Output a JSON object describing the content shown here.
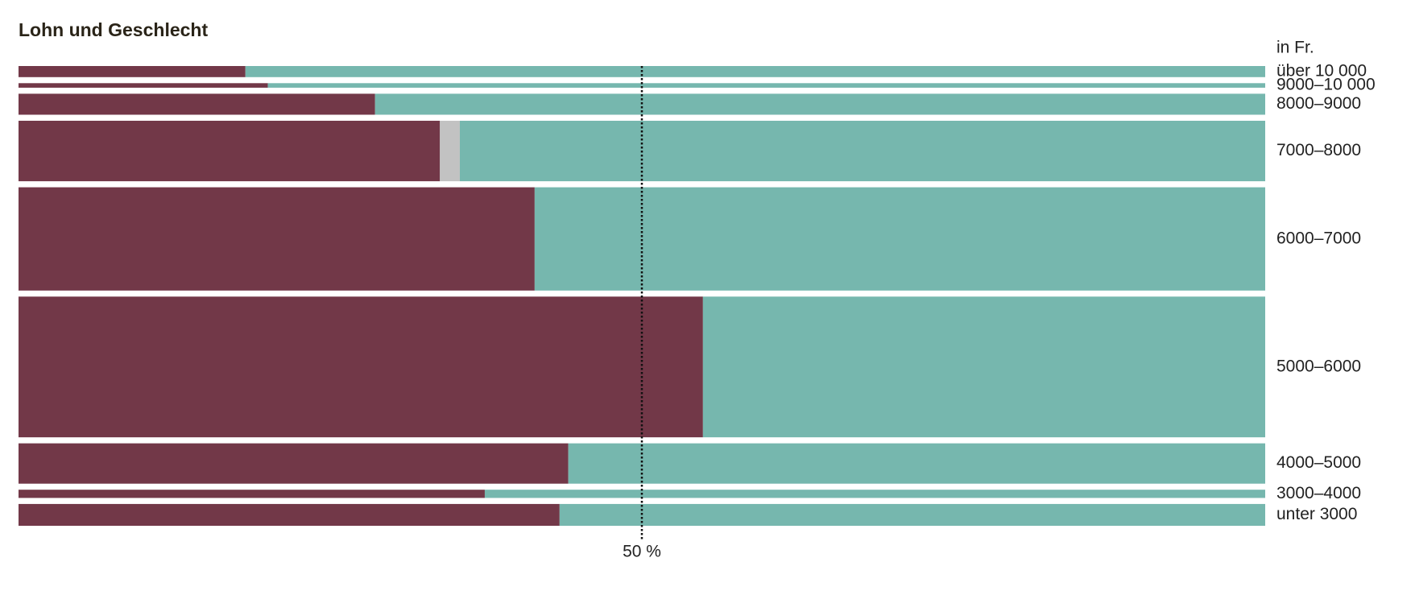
{
  "chart_data": {
    "type": "marimekko",
    "title": "Lohn und Geschlecht",
    "unit_label": "in Fr.",
    "categories": [
      "über 10 000",
      "9000–10 000",
      "8000–9000",
      "7000–8000",
      "6000–7000",
      "5000–6000",
      "4000–5000",
      "3000–4000",
      "unter 3000"
    ],
    "weights": [
      2.7,
      1.1,
      5.1,
      14.7,
      25.1,
      34.2,
      9.8,
      2.0,
      5.3
    ],
    "series": [
      {
        "color": "#723848",
        "values": [
          18.2,
          20.0,
          28.6,
          33.8,
          41.4,
          54.9,
          44.1,
          37.4,
          43.4
        ]
      },
      {
        "color": "#c2c2c2",
        "values": [
          0,
          0,
          0,
          1.6,
          0,
          0,
          0,
          0,
          0
        ]
      },
      {
        "color": "#76b7ae",
        "values": [
          81.8,
          80.0,
          71.4,
          64.6,
          58.6,
          45.1,
          55.9,
          62.6,
          56.6
        ]
      }
    ],
    "xlim": [
      0,
      100
    ],
    "xticks": [
      {
        "value": 50,
        "label": "50 %"
      }
    ]
  }
}
